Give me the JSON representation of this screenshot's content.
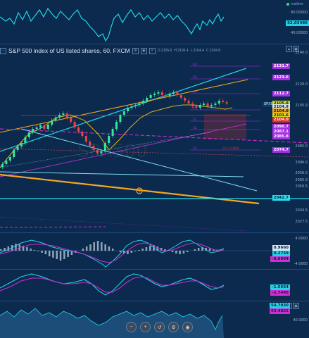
{
  "top_indicator": {
    "status": "realtime",
    "labels": [
      "80.00000",
      "40.00000"
    ],
    "value_tag": "52.03486",
    "accent": "#22d3e6"
  },
  "main": {
    "title": "S&P 500 index of US listed shares, 60, FXCM",
    "ohlc": {
      "o": "O 2105.6",
      "h": "H 2106.4",
      "l": "L 2104.4",
      "c": "C 2104.8"
    },
    "symbol_tag": "SPX500",
    "watermark": "SPX500",
    "axis_labels": [
      "2140.0",
      "2120.0",
      "2105.9",
      "2096.0",
      "2085.0",
      "2065.9",
      "2056.0",
      "2050.5",
      "2034.5",
      "2027.5"
    ],
    "price_tags": [
      {
        "text": "2131.7",
        "color": "#a52ee6"
      },
      {
        "text": "2123.6",
        "color": "#a52ee6"
      },
      {
        "text": "2112.7",
        "color": "#a52ee6"
      },
      {
        "text": "2105.8",
        "color": "#d8d81a"
      },
      {
        "text": "2104.9",
        "color": "#cfe8f2"
      },
      {
        "text": "2104.8",
        "color": "#f5a623"
      },
      {
        "text": "2101.6",
        "color": "#d8d81a"
      },
      {
        "text": "2104.0",
        "color": "#e12c2c"
      },
      {
        "text": "2090.7",
        "color": "#a52ee6"
      },
      {
        "text": "2087.1",
        "color": "#a52ee6"
      },
      {
        "text": "2085.8",
        "color": "#a52ee6"
      },
      {
        "text": "2074.7",
        "color": "#a52ee6"
      },
      {
        "text": "2042.7",
        "color": "#22e0f0"
      }
    ],
    "pivot_labels": [
      "R3",
      "R2",
      "R1",
      "P",
      "S1",
      "S2",
      "S3"
    ],
    "pivot_note": "S3 | 0.88%",
    "colors": {
      "candle_up": "#35e6a0",
      "candle_down": "#e84545",
      "upper_channel": "#22d3e6",
      "orange": "#f5a623",
      "magenta": "#d22bd6"
    }
  },
  "macd": {
    "labels": [
      "4.0000",
      "-4.0000"
    ],
    "tags": [
      {
        "text": "0.9660",
        "color": "#d8e4f2"
      },
      {
        "text": "0.2759",
        "color": "#22d3e6"
      },
      {
        "text": "-0.6904",
        "color": "#d22bd6"
      }
    ]
  },
  "osc": {
    "tags": [
      {
        "text": "-1.5654",
        "color": "#22d3e6"
      },
      {
        "text": "-2.7445",
        "color": "#d22bd6"
      }
    ]
  },
  "rsi": {
    "labels": [
      "40.0000"
    ],
    "tags": [
      {
        "text": "54.7030",
        "color": "#22d3e6"
      },
      {
        "text": "53.4821",
        "color": "#d22bd6"
      }
    ]
  },
  "toolbar": {
    "buttons": [
      "zoom-out-icon",
      "zoom-in-icon",
      "reset-icon",
      "settings-icon",
      "camera-icon"
    ]
  }
}
